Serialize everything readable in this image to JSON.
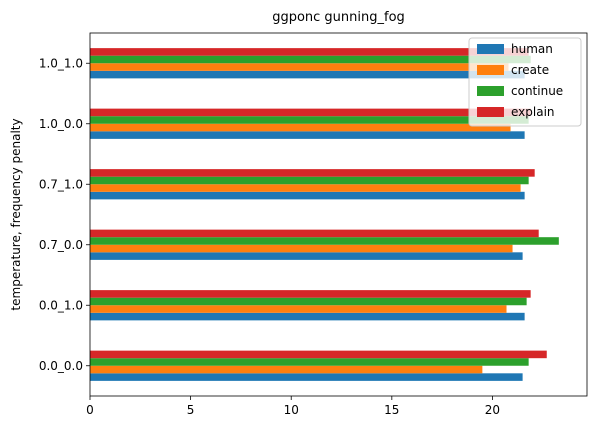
{
  "chart_data": {
    "type": "bar",
    "orientation": "horizontal",
    "title": "ggponc gunning_fog",
    "xlabel": "",
    "ylabel": "temperature, frequency penalty",
    "categories": [
      "0.0_0.0",
      "0.0_1.0",
      "0.7_0.0",
      "0.7_1.0",
      "1.0_0.0",
      "1.0_1.0"
    ],
    "series": [
      {
        "name": "human",
        "color": "#1f77b4",
        "values": [
          21.5,
          21.6,
          21.5,
          21.6,
          21.6,
          21.6
        ]
      },
      {
        "name": "create",
        "color": "#ff7f0e",
        "values": [
          19.5,
          20.7,
          21.0,
          21.4,
          20.9,
          20.8
        ]
      },
      {
        "name": "continue",
        "color": "#2ca02c",
        "values": [
          21.8,
          21.7,
          23.3,
          21.8,
          21.8,
          21.9
        ]
      },
      {
        "name": "explain",
        "color": "#d62728",
        "values": [
          22.7,
          21.9,
          22.3,
          22.1,
          21.9,
          21.8
        ]
      }
    ],
    "xlim": [
      0,
      24.7
    ],
    "xticks": [
      0,
      5,
      10,
      15,
      20
    ],
    "grid": false,
    "legend_position": "top-right"
  }
}
